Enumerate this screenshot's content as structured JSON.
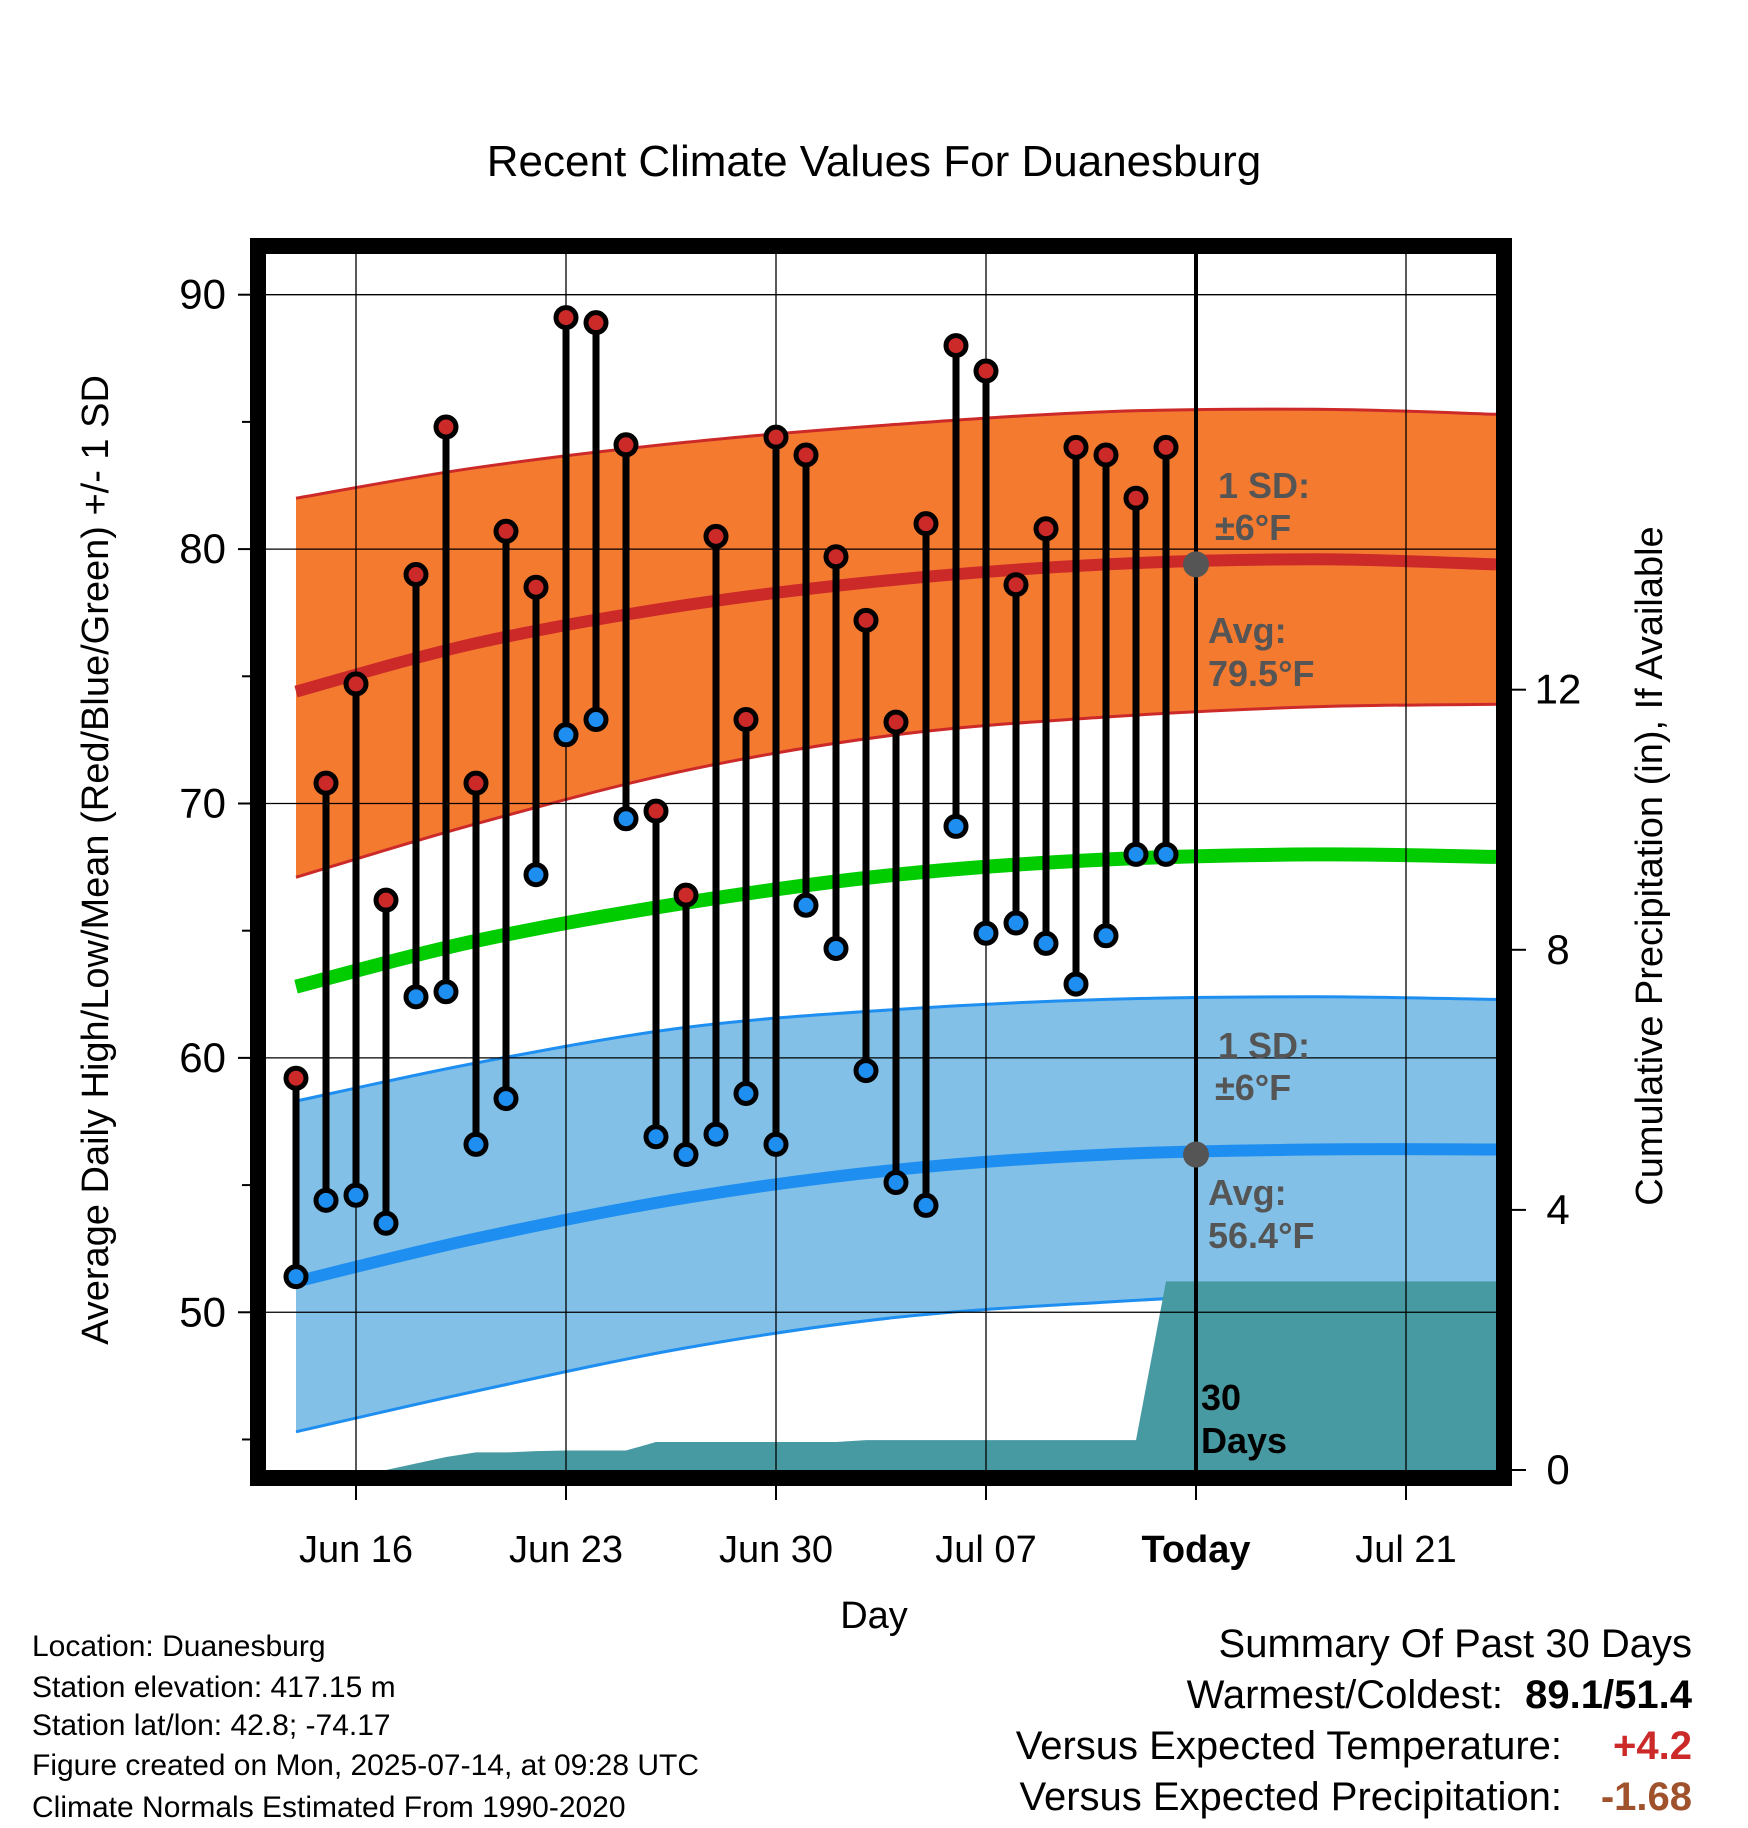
{
  "chart_data": {
    "type": "line",
    "title": "Recent Climate Values For Duanesburg",
    "xlabel": "Day",
    "ylabel": "Average Daily High/Low/Mean (Red/Blue/Green) +/- 1 SD",
    "y2label": "Cumulative Precipitation (in), If Available",
    "x_start": "2025-06-13",
    "x_end": "2025-07-24",
    "xticks": [
      {
        "date": "2025-06-16",
        "label": "Jun 16"
      },
      {
        "date": "2025-06-23",
        "label": "Jun 23"
      },
      {
        "date": "2025-06-30",
        "label": "Jun 30"
      },
      {
        "date": "2025-07-07",
        "label": "Jul 07"
      },
      {
        "date": "2025-07-14",
        "label": "Today"
      },
      {
        "date": "2025-07-21",
        "label": "Jul 21"
      }
    ],
    "ylim": [
      43.8,
      91.6
    ],
    "yticks": [
      50,
      60,
      70,
      80,
      90
    ],
    "y2lim": [
      0,
      18.7
    ],
    "y2ticks": [
      0,
      4,
      8,
      12
    ],
    "grid": true,
    "today": "2025-07-14",
    "observed": {
      "dates": [
        "2025-06-14",
        "2025-06-15",
        "2025-06-16",
        "2025-06-17",
        "2025-06-18",
        "2025-06-19",
        "2025-06-20",
        "2025-06-21",
        "2025-06-22",
        "2025-06-23",
        "2025-06-24",
        "2025-06-25",
        "2025-06-26",
        "2025-06-27",
        "2025-06-28",
        "2025-06-29",
        "2025-06-30",
        "2025-07-01",
        "2025-07-02",
        "2025-07-03",
        "2025-07-04",
        "2025-07-05",
        "2025-07-06",
        "2025-07-07",
        "2025-07-08",
        "2025-07-09",
        "2025-07-10",
        "2025-07-11",
        "2025-07-12",
        "2025-07-13"
      ],
      "high": [
        59.2,
        70.8,
        74.7,
        66.2,
        79.0,
        84.8,
        70.8,
        80.7,
        78.5,
        89.1,
        88.9,
        84.1,
        69.7,
        66.4,
        80.5,
        73.3,
        84.4,
        83.7,
        79.7,
        77.2,
        73.2,
        81.0,
        88.0,
        87.0,
        78.6,
        80.8,
        84.0,
        83.7,
        82.0,
        84.0
      ],
      "low": [
        51.4,
        54.4,
        54.6,
        53.5,
        62.4,
        62.6,
        56.6,
        58.4,
        67.2,
        72.7,
        73.3,
        69.4,
        56.9,
        56.2,
        57.0,
        58.6,
        56.6,
        66.0,
        64.3,
        59.5,
        55.1,
        54.2,
        69.1,
        64.9,
        65.3,
        64.5,
        62.9,
        64.8,
        68.0,
        68.0
      ]
    },
    "normals": {
      "dates": [
        "2025-06-14",
        "2025-06-20",
        "2025-06-27",
        "2025-07-04",
        "2025-07-11",
        "2025-07-18",
        "2025-07-24"
      ],
      "high_avg": [
        74.4,
        76.3,
        77.8,
        78.8,
        79.4,
        79.6,
        79.4
      ],
      "high_upper": [
        82.0,
        83.2,
        84.2,
        84.9,
        85.4,
        85.5,
        85.3
      ],
      "high_lower": [
        67.1,
        69.2,
        71.3,
        72.7,
        73.4,
        73.8,
        73.9
      ],
      "mean_avg": [
        62.8,
        64.6,
        66.1,
        67.2,
        67.8,
        68.0,
        67.9
      ],
      "low_avg": [
        51.2,
        52.9,
        54.5,
        55.6,
        56.2,
        56.4,
        56.4
      ],
      "low_upper": [
        58.3,
        59.8,
        61.2,
        61.9,
        62.3,
        62.4,
        62.3
      ],
      "low_lower": [
        45.3,
        46.9,
        48.6,
        49.8,
        50.4,
        50.8,
        50.9
      ]
    },
    "precipitation": {
      "dates": [
        "2025-06-16",
        "2025-06-17",
        "2025-06-18",
        "2025-06-19",
        "2025-06-20",
        "2025-06-21",
        "2025-06-22",
        "2025-06-23",
        "2025-06-24",
        "2025-06-25",
        "2025-06-26",
        "2025-06-27",
        "2025-06-28",
        "2025-06-29",
        "2025-06-30",
        "2025-07-01",
        "2025-07-02",
        "2025-07-03",
        "2025-07-04",
        "2025-07-05",
        "2025-07-06",
        "2025-07-07",
        "2025-07-08",
        "2025-07-09",
        "2025-07-10",
        "2025-07-11",
        "2025-07-12",
        "2025-07-13",
        "2025-07-14",
        "2025-07-24"
      ],
      "cumulative": [
        0,
        0,
        0.1,
        0.2,
        0.27,
        0.27,
        0.29,
        0.3,
        0.3,
        0.3,
        0.43,
        0.43,
        0.43,
        0.43,
        0.43,
        0.43,
        0.43,
        0.46,
        0.46,
        0.46,
        0.46,
        0.46,
        0.46,
        0.46,
        0.46,
        0.46,
        0.46,
        2.9,
        2.9,
        2.9
      ]
    },
    "annotations": {
      "high_sd": "1 SD:",
      "high_sd_value": "±6°F",
      "high_avg": "Avg:",
      "high_avg_value": "79.5°F",
      "low_sd": "1 SD:",
      "low_sd_value": "±6°F",
      "low_avg": "Avg:",
      "low_avg_value": "56.4°F",
      "period_1": "30",
      "period_2": "Days"
    },
    "colors": {
      "high": "#cc2929",
      "high_band": "#f47a30",
      "low": "#1e8ff0",
      "low_band": "#82c0e7",
      "mean": "#00cc00",
      "precip": "#489aa2",
      "annotation": "#555555"
    }
  },
  "info": {
    "location": "Location: Duanesburg",
    "elevation": "Station elevation: 417.15 m",
    "latlon": "Station lat/lon: 42.8; -74.17",
    "created": "Figure created on Mon, 2025-07-14, at 09:28 UTC",
    "normals": "Climate Normals Estimated From 1990-2020"
  },
  "summary": {
    "title": "Summary Of Past 30 Days",
    "warmest_coldest_label": "Warmest/Coldest:",
    "warmest_coldest_value": "89.1/51.4",
    "temp_label": "Versus Expected Temperature:",
    "temp_value": "+4.2",
    "precip_label": "Versus Expected Precipitation:",
    "precip_value": "-1.68",
    "temp_color": "#cc2929",
    "precip_color": "#a0522d"
  }
}
